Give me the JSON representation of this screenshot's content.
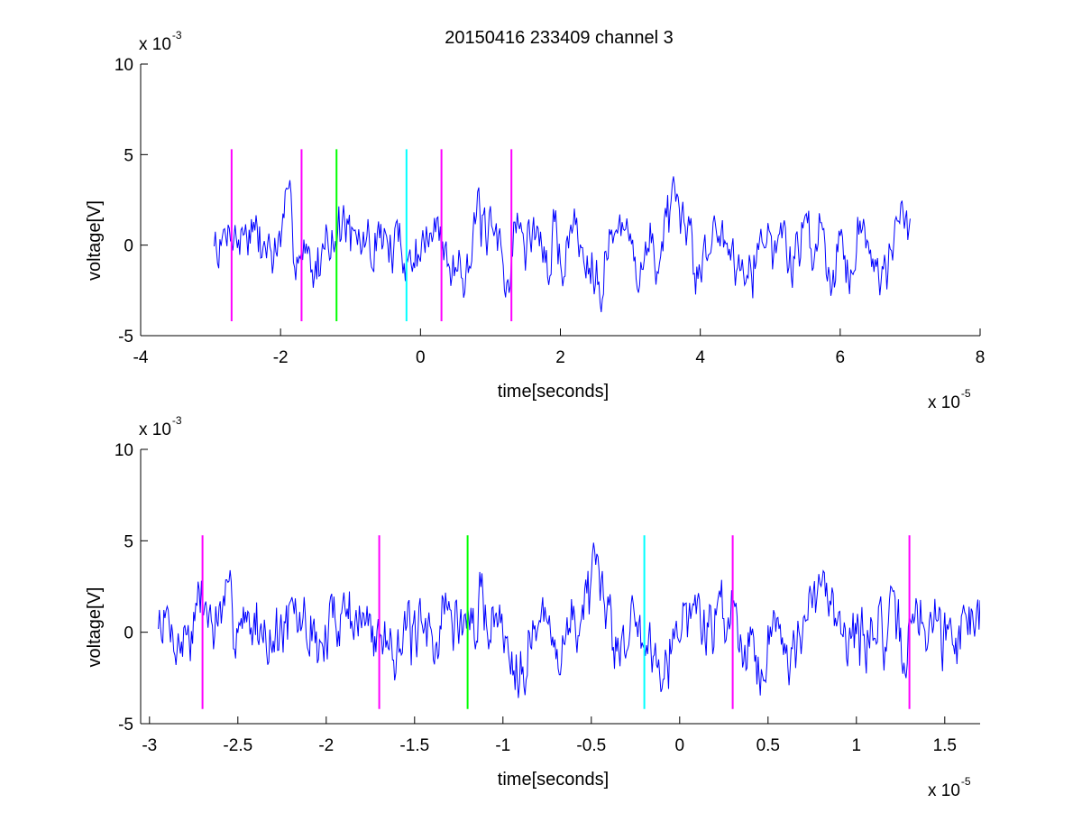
{
  "figure": {
    "title": "20150416 233409 channel 3"
  },
  "colors": {
    "signal": "#0000ff",
    "magenta": "#ff00ff",
    "green": "#00ff00",
    "cyan": "#00ffff",
    "axis": "#000000"
  },
  "chart_data": [
    {
      "type": "line",
      "panel": "top",
      "title": "20150416 233409 channel 3",
      "xlabel": "time[seconds]",
      "ylabel": "voltage[V]",
      "x_exponent_label": "x 10",
      "x_exponent": "-5",
      "y_exponent_label": "x 10",
      "y_exponent": "-3",
      "xlim": [
        -4,
        8
      ],
      "ylim": [
        -5,
        10
      ],
      "x_ticks": [
        -4,
        -2,
        0,
        2,
        4,
        6,
        8
      ],
      "x_tick_labels": [
        "-4",
        "-2",
        "0",
        "2",
        "4",
        "6",
        "8"
      ],
      "y_ticks": [
        -5,
        0,
        5,
        10
      ],
      "y_tick_labels": [
        "-5",
        "0",
        "5",
        "10"
      ],
      "grid": false,
      "signal": {
        "x_start": -2.95,
        "x_end": 7.0,
        "y_range": [
          -3.7,
          3.8
        ],
        "points_per_unit": 60,
        "seed": 7
      },
      "markers": [
        {
          "x": -2.7,
          "y_from": -4.2,
          "y_to": 5.3,
          "color": "magenta"
        },
        {
          "x": -1.7,
          "y_from": -4.2,
          "y_to": 5.3,
          "color": "magenta"
        },
        {
          "x": -1.2,
          "y_from": -4.2,
          "y_to": 5.3,
          "color": "green"
        },
        {
          "x": -0.2,
          "y_from": -4.2,
          "y_to": 5.3,
          "color": "cyan"
        },
        {
          "x": 0.3,
          "y_from": -4.2,
          "y_to": 5.3,
          "color": "magenta"
        },
        {
          "x": 1.3,
          "y_from": -4.2,
          "y_to": 5.3,
          "color": "magenta"
        }
      ]
    },
    {
      "type": "line",
      "panel": "bottom",
      "xlabel": "time[seconds]",
      "ylabel": "voltage[V]",
      "x_exponent_label": "x 10",
      "x_exponent": "-5",
      "y_exponent_label": "x 10",
      "y_exponent": "-3",
      "xlim": [
        -3.05,
        1.7
      ],
      "ylim": [
        -5,
        10
      ],
      "x_ticks": [
        -3,
        -2.5,
        -2,
        -1.5,
        -1,
        -0.5,
        0,
        0.5,
        1,
        1.5
      ],
      "x_tick_labels": [
        "-3",
        "-2.5",
        "-2",
        "-1.5",
        "-1",
        "-0.5",
        "0",
        "0.5",
        "1",
        "1.5"
      ],
      "y_ticks": [
        -5,
        0,
        5,
        10
      ],
      "y_tick_labels": [
        "-5",
        "0",
        "5",
        "10"
      ],
      "grid": false,
      "signal": {
        "x_start": -2.95,
        "x_end": 1.7,
        "y_range": [
          -3.6,
          4.9
        ],
        "points_per_unit": 160,
        "seed": 7
      },
      "markers": [
        {
          "x": -2.7,
          "y_from": -4.2,
          "y_to": 5.3,
          "color": "magenta"
        },
        {
          "x": -1.7,
          "y_from": -4.2,
          "y_to": 5.3,
          "color": "magenta"
        },
        {
          "x": -1.2,
          "y_from": -4.2,
          "y_to": 5.3,
          "color": "green"
        },
        {
          "x": -0.2,
          "y_from": -4.2,
          "y_to": 5.3,
          "color": "cyan"
        },
        {
          "x": 0.3,
          "y_from": -4.2,
          "y_to": 5.3,
          "color": "magenta"
        },
        {
          "x": 1.3,
          "y_from": -4.2,
          "y_to": 5.3,
          "color": "magenta"
        }
      ]
    }
  ]
}
